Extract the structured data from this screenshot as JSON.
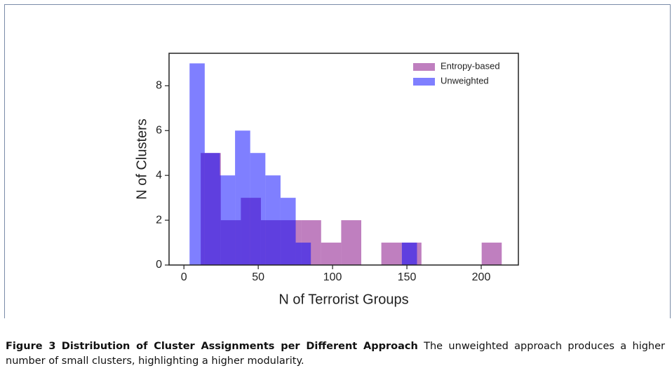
{
  "chart_data": {
    "type": "histogram",
    "xlabel": "N of Terrorist Groups",
    "ylabel": "N of Clusters",
    "xlim": [
      -10,
      225
    ],
    "xticks": [
      0,
      50,
      100,
      150,
      200
    ],
    "ylim": [
      0,
      9.45
    ],
    "yticks": [
      0,
      2,
      4,
      6,
      8
    ],
    "legend": "upper right",
    "series": [
      {
        "name": "Entropy-based",
        "color": "#800080",
        "bins": [
          11.3,
          24.8,
          38.3,
          51.8,
          65.3,
          78.8,
          92.3,
          105.8,
          119.3,
          132.8,
          146.3,
          159.8,
          173.3,
          186.8,
          200.3,
          213.8
        ],
        "values": [
          5,
          2,
          3,
          2,
          2,
          2,
          1,
          2,
          0,
          1,
          1,
          0,
          0,
          0,
          1
        ]
      },
      {
        "name": "Unweighted",
        "color": "#0000ff",
        "bins": [
          3.8,
          14,
          24.2,
          34.4,
          44.6,
          54.8,
          65,
          75.2,
          85.4,
          95.6,
          105.8,
          116,
          126.2,
          136.4,
          146.6,
          156.8
        ],
        "values": [
          9,
          5,
          4,
          6,
          5,
          4,
          3,
          1,
          0,
          0,
          0,
          0,
          0,
          0,
          1
        ]
      }
    ]
  },
  "caption": {
    "label": "Figure 3",
    "title": "Distribution of Cluster Assignments per Different Approach",
    "text": "The unweighted approach produces a higher number of small clusters, highlighting a higher modularity."
  }
}
